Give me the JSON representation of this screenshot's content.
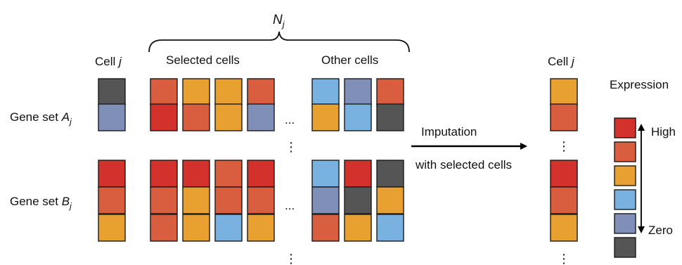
{
  "labels": {
    "n_symbol": "N",
    "n_subscript": "j",
    "cell_j_left": "Cell ",
    "cell_j_left_italic": "j",
    "selected_cells": "Selected cells",
    "other_cells": "Other cells",
    "gene_set_a": "Gene set ",
    "gene_set_a_symbol": "A",
    "gene_set_a_subscript": "j",
    "gene_set_b": "Gene set ",
    "gene_set_b_symbol": "B",
    "gene_set_b_subscript": "j",
    "imputation_line1": "Imputation",
    "imputation_line2": "with selected cells",
    "cell_j_right": "Cell ",
    "cell_j_right_italic": "j",
    "legend_title": "Expression",
    "legend_high": "High",
    "legend_zero": "Zero",
    "h_ellipsis": "...",
    "v_ellipsis": "⋮"
  },
  "colors": {
    "high": "#d3312b",
    "mid_high": "#d95d3f",
    "mid": "#e8a030",
    "low": "#79b1e0",
    "very_low": "#7f8fb8",
    "zero": "#555555",
    "border": "#1a1a1a"
  },
  "legend_levels": [
    "high",
    "mid_high",
    "mid",
    "low",
    "very_low",
    "zero"
  ],
  "matrix": {
    "cell_j_left": [
      [
        "zero"
      ],
      [
        "very_low"
      ],
      [
        "high"
      ],
      [
        "mid_high"
      ],
      [
        "mid"
      ]
    ],
    "selected": [
      [
        "mid_high",
        "mid",
        "mid",
        "mid_high"
      ],
      [
        "high",
        "mid_high",
        "mid",
        "very_low"
      ],
      [
        "high",
        "high",
        "mid_high",
        "high"
      ],
      [
        "mid_high",
        "mid",
        "mid_high",
        "mid_high"
      ],
      [
        "mid_high",
        "mid",
        "low",
        "mid"
      ]
    ],
    "other": [
      [
        "low",
        "very_low",
        "mid_high"
      ],
      [
        "mid",
        "low",
        "zero"
      ],
      [
        "low",
        "high",
        "zero"
      ],
      [
        "very_low",
        "zero",
        "mid"
      ],
      [
        "mid_high",
        "mid",
        "low"
      ]
    ],
    "cell_j_right": [
      [
        "mid"
      ],
      [
        "mid_high"
      ],
      [
        "high"
      ],
      [
        "mid_high"
      ],
      [
        "mid"
      ]
    ]
  }
}
